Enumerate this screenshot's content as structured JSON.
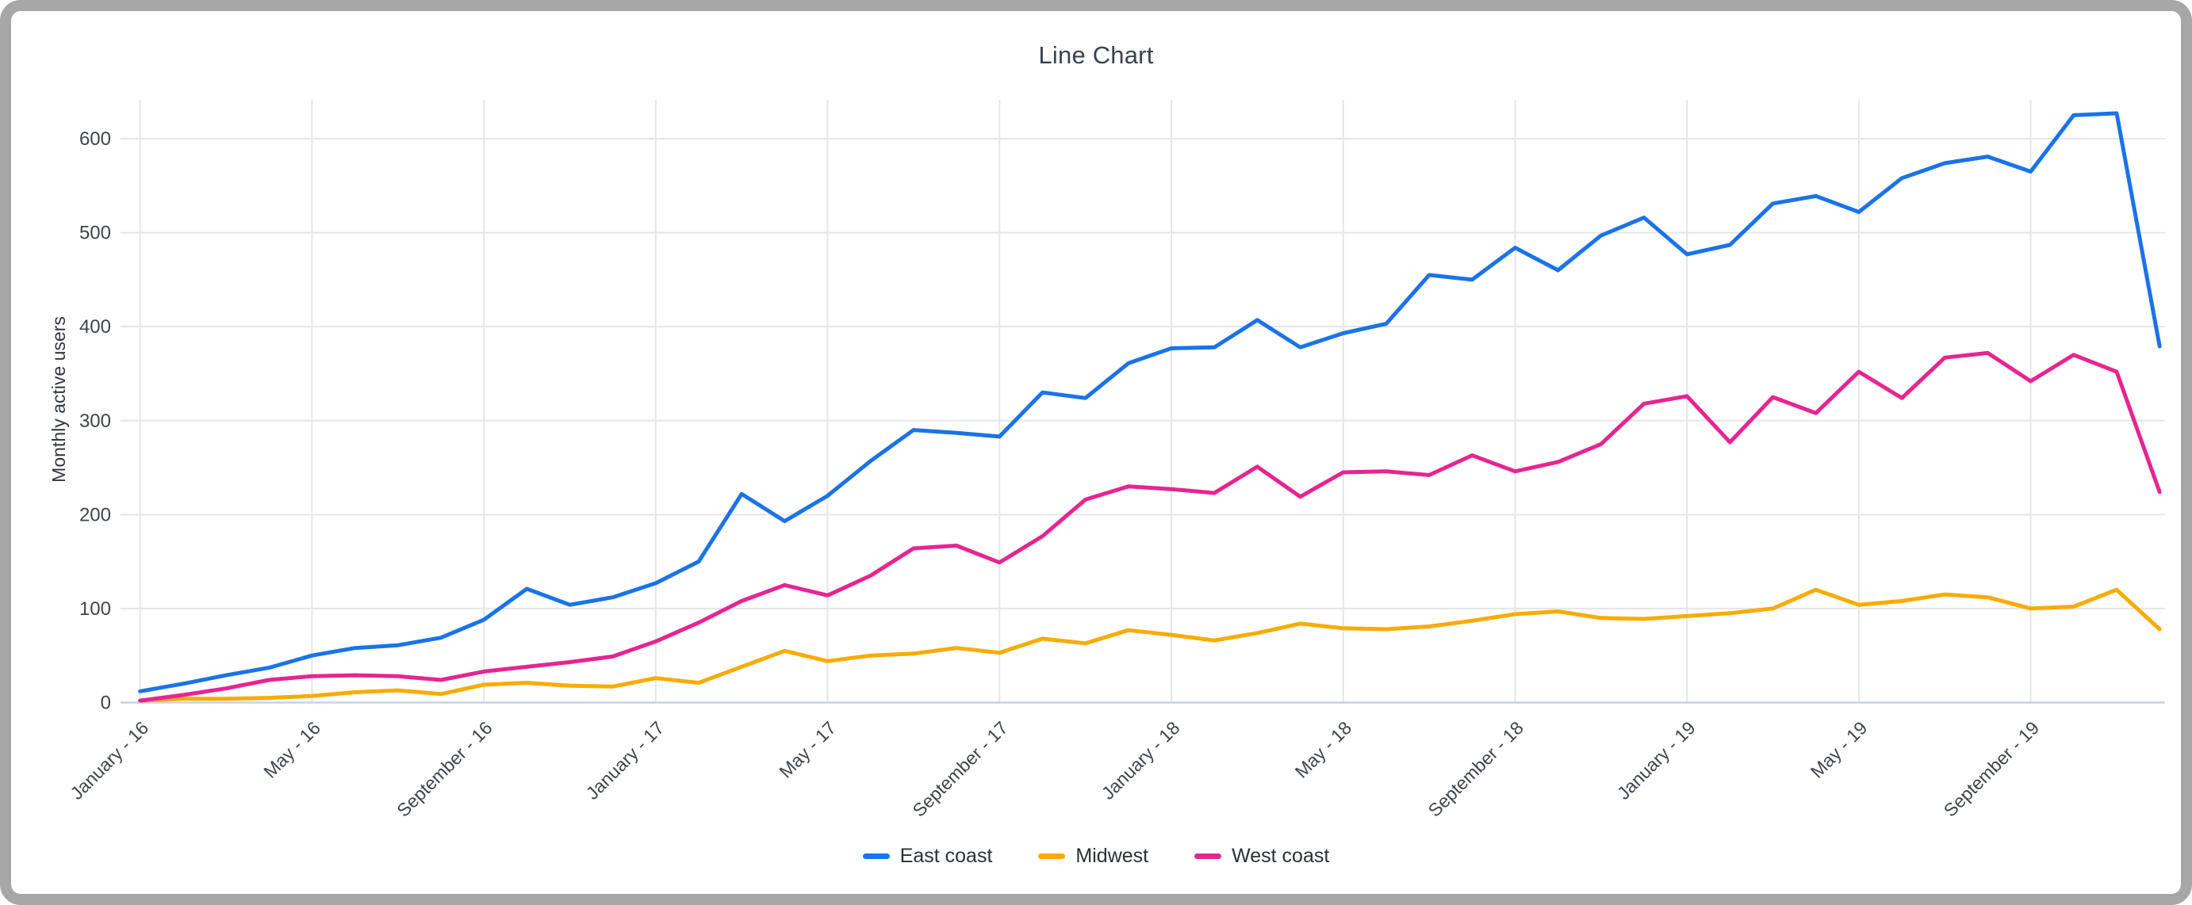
{
  "window": {
    "frame_color": "#a7a7a7",
    "background_color": "#ffffff"
  },
  "chart_data": {
    "type": "line",
    "title": "Line Chart",
    "xlabel": "",
    "ylabel": "Monthly active users",
    "ylim": [
      0,
      600
    ],
    "yticks": [
      0,
      100,
      200,
      300,
      400,
      500,
      600
    ],
    "grid": true,
    "legend_position": "bottom",
    "n_points": 48,
    "x_tick_every": 4,
    "x_tick_labels": [
      "January - 16",
      "May - 16",
      "September - 16",
      "January - 17",
      "May - 17",
      "September - 17",
      "January - 18",
      "May - 18",
      "September - 18",
      "January - 19",
      "May - 19",
      "September - 19"
    ],
    "series": [
      {
        "name": "East coast",
        "color": "#1a73e8",
        "values": [
          12,
          20,
          29,
          37,
          50,
          58,
          61,
          69,
          88,
          121,
          104,
          112,
          127,
          150,
          222,
          193,
          220,
          257,
          290,
          287,
          283,
          330,
          324,
          361,
          377,
          378,
          407,
          378,
          393,
          403,
          455,
          450,
          484,
          460,
          497,
          516,
          477,
          487,
          531,
          539,
          522,
          558,
          574,
          581,
          565,
          625,
          627,
          379
        ]
      },
      {
        "name": "Midwest",
        "color": "#f9ab00",
        "values": [
          2,
          4,
          4,
          5,
          7,
          11,
          13,
          9,
          19,
          21,
          18,
          17,
          26,
          21,
          38,
          55,
          44,
          50,
          52,
          58,
          53,
          68,
          63,
          77,
          72,
          66,
          74,
          84,
          79,
          78,
          81,
          87,
          94,
          97,
          90,
          89,
          92,
          95,
          100,
          120,
          104,
          108,
          115,
          112,
          100,
          102,
          120,
          78
        ]
      },
      {
        "name": "West coast",
        "color": "#e52592",
        "values": [
          2,
          8,
          15,
          24,
          28,
          29,
          28,
          24,
          33,
          38,
          43,
          49,
          65,
          85,
          108,
          125,
          114,
          135,
          164,
          167,
          149,
          177,
          216,
          230,
          227,
          223,
          251,
          219,
          245,
          246,
          242,
          263,
          246,
          256,
          275,
          318,
          326,
          277,
          325,
          308,
          352,
          324,
          367,
          372,
          342,
          370,
          352,
          224
        ]
      }
    ],
    "colors": {
      "gridline": "#e6e6e6",
      "baseline": "#c6d2ea",
      "tick_text": "#3e454d",
      "title_text": "#3a434d"
    }
  }
}
